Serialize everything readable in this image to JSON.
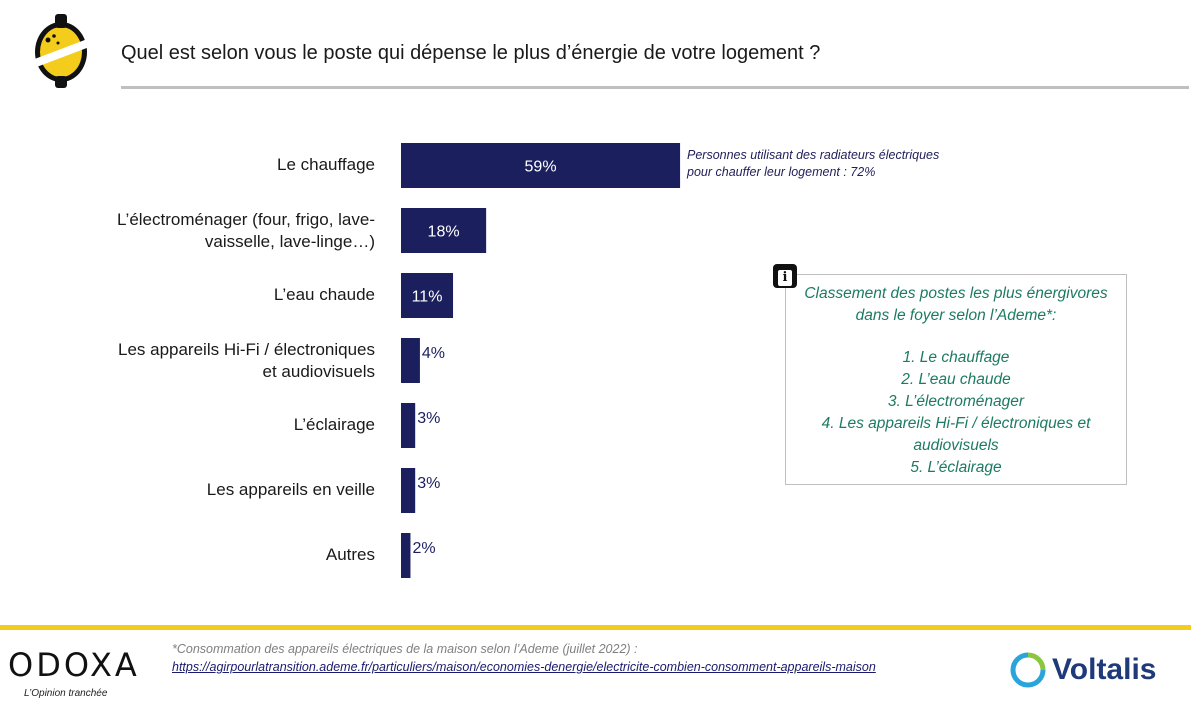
{
  "title": "Quel est selon vous le poste qui dépense le plus d’énergie de votre logement ?",
  "colors": {
    "bar": "#1b1f5e",
    "bar_label_inside": "#ffffff",
    "bar_label_outside": "#1b1f5e",
    "info_text": "#1d7a63",
    "accent_yellow": "#f3cc1c"
  },
  "chart_data": {
    "type": "bar",
    "orientation": "horizontal",
    "categories": [
      [
        "Le chauffage"
      ],
      [
        "L’électroménager (four, frigo, lave-",
        "vaisselle, lave-linge…)"
      ],
      [
        "L’eau chaude"
      ],
      [
        "Les appareils Hi-Fi / électroniques",
        "et audiovisuels"
      ],
      [
        "L’éclairage"
      ],
      [
        "Les appareils en veille"
      ],
      [
        "Autres"
      ]
    ],
    "values": [
      59,
      18,
      11,
      4,
      3,
      3,
      2
    ],
    "value_labels": [
      "59%",
      "18%",
      "11%",
      "4%",
      "3%",
      "3%",
      "2%"
    ],
    "xlim": [
      0,
      100
    ],
    "grid": false
  },
  "note_radiateurs": {
    "line1": "Personnes utilisant des radiateurs électriques",
    "line2": "pour chauffer leur logement : 72%"
  },
  "info_box": {
    "heading_line1": "Classement des postes les plus énergivores",
    "heading_line2": "dans le foyer selon l’Ademe*:",
    "item1": "1. Le chauffage",
    "item2": "2. L’eau chaude",
    "item3": "3. L’électroménager",
    "item4_line1": "4. Les appareils Hi-Fi / électroniques et",
    "item4_line2": "audiovisuels",
    "item5": "5. L’éclairage",
    "icon": "info-icon"
  },
  "footer": {
    "brand_left": "ODOXA",
    "tagline": "L’Opinion tranchée",
    "footnote": "*Consommation des appareils électriques de la maison selon l’Ademe (juillet 2022) :",
    "footnote_url": "https://agirpourlatransition.ademe.fr/particuliers/maison/economies-denergie/electricite-combien-consomment-appareils-maison",
    "brand_right": "Voltalis"
  }
}
